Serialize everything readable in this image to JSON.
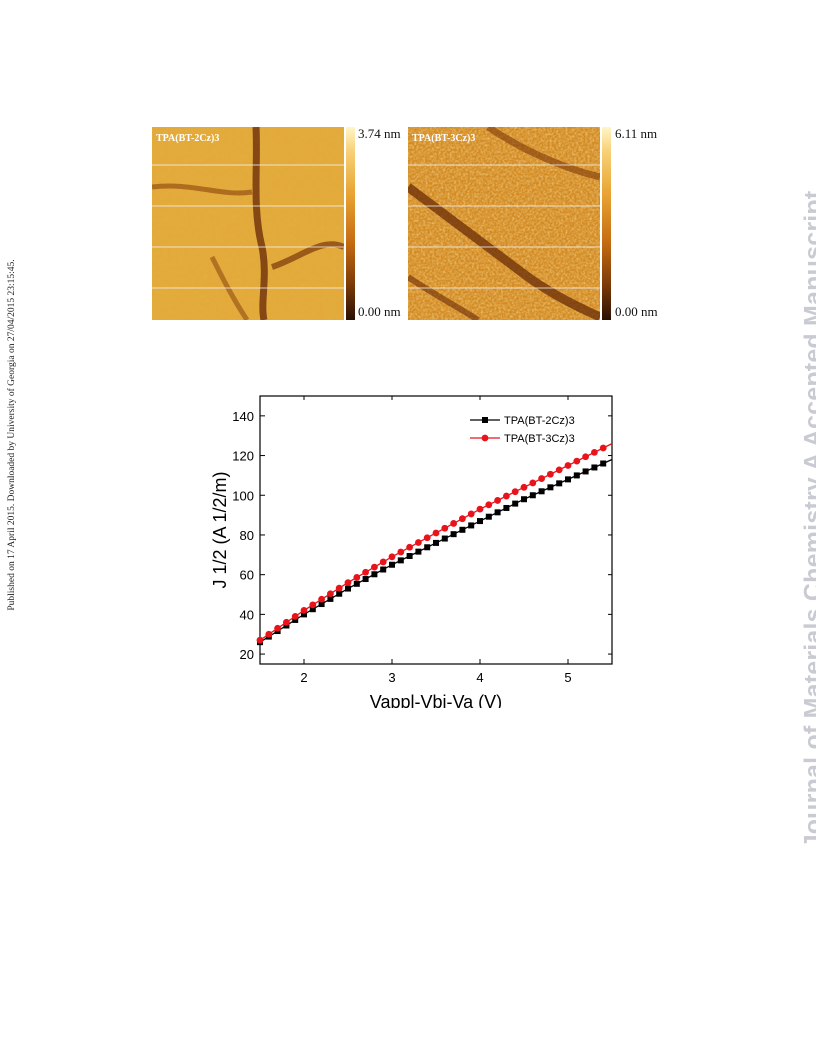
{
  "side_note": "Published on 17 April 2015. Downloaded by University of Georgia on 27/04/2015 23:15:45.",
  "watermark": "Journal of Materials Chemistry A Accepted Manuscript",
  "afm_images": [
    {
      "label": "TPA(BT-2Cz)3",
      "scale_max": "3.74 nm",
      "scale_min": "0.00 nm"
    },
    {
      "label": "TPA(BT-3Cz)3",
      "scale_max": "6.11 nm",
      "scale_min": "0.00 nm"
    }
  ],
  "chart_data": {
    "type": "line",
    "xlabel": "Vappl-Vbi-Va (V)",
    "ylabel": "J 1/2 (A 1/2/m)",
    "xlim": [
      1.5,
      5.5
    ],
    "ylim": [
      15,
      150
    ],
    "xticks": [
      2,
      3,
      4,
      5
    ],
    "yticks": [
      20,
      40,
      60,
      80,
      100,
      120,
      140
    ],
    "legend_position": "top-right",
    "series": [
      {
        "name": "TPA(BT-2Cz)3",
        "color": "#000000",
        "marker": "square",
        "x": [
          1.5,
          2.0,
          2.5,
          3.0,
          3.5,
          4.0,
          4.5,
          5.0,
          5.5
        ],
        "y": [
          26,
          40,
          53,
          65,
          76,
          87,
          98,
          108,
          118
        ]
      },
      {
        "name": "TPA(BT-3Cz)3",
        "color": "#e8141b",
        "marker": "circle",
        "x": [
          1.5,
          2.0,
          2.5,
          3.0,
          3.5,
          4.0,
          4.5,
          5.0,
          5.5
        ],
        "y": [
          27,
          42,
          56,
          69,
          81,
          93,
          104,
          115,
          126
        ]
      }
    ]
  }
}
